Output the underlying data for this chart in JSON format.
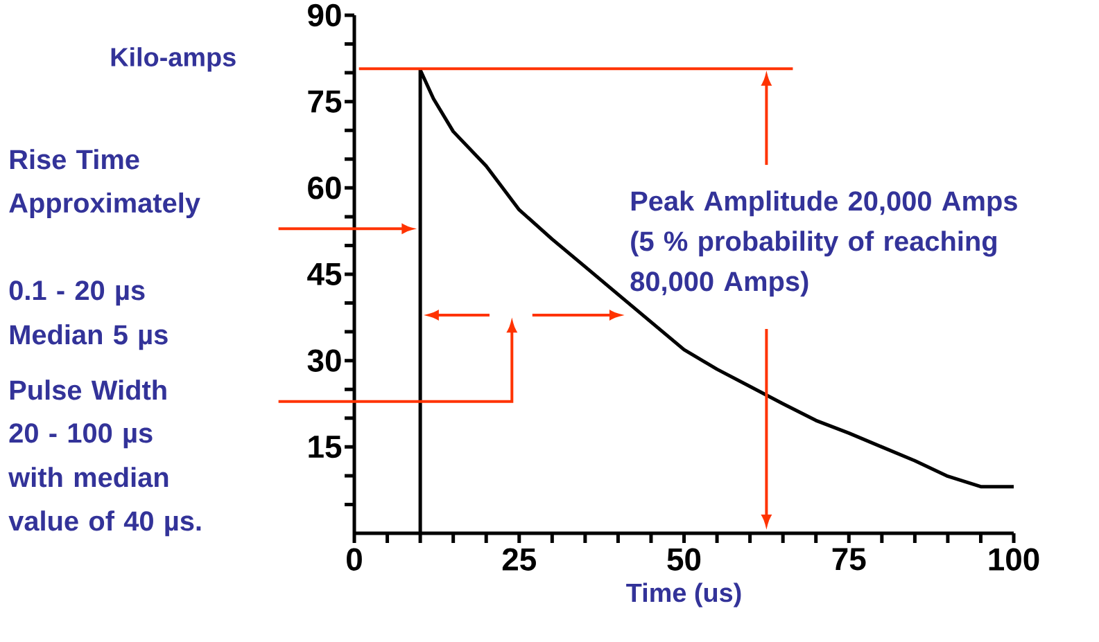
{
  "chart_data": {
    "type": "line",
    "xlabel": "Time (us)",
    "ylabel": "Kilo-amps",
    "series": [
      {
        "color": "#000000",
        "x": [
          10,
          10,
          12,
          15,
          20,
          25,
          30,
          35,
          40,
          45,
          50,
          55,
          60,
          65,
          70,
          75,
          80,
          85,
          90,
          95,
          100
        ],
        "values": [
          0,
          80.5,
          75.5,
          69.8,
          63.8,
          56.2,
          51.1,
          46.3,
          41.5,
          36.7,
          31.9,
          28.5,
          25.5,
          22.5,
          19.6,
          17.4,
          15.0,
          12.6,
          9.9,
          8.1,
          8.1
        ]
      }
    ],
    "xlim": [
      0,
      100
    ],
    "ylim": [
      0,
      90
    ],
    "xticks": [
      0,
      {
        "value": 5,
        "label": null
      },
      {
        "value": 10,
        "label": null
      },
      {
        "value": 15,
        "label": null
      },
      {
        "value": 20,
        "label": null
      },
      25,
      {
        "value": 30,
        "label": null
      },
      {
        "value": 35,
        "label": null
      },
      {
        "value": 40,
        "label": null
      },
      {
        "value": 45,
        "label": null
      },
      50,
      {
        "value": 55,
        "label": null
      },
      {
        "value": 60,
        "label": null
      },
      {
        "value": 65,
        "label": null
      },
      {
        "value": 70,
        "label": null
      },
      75,
      {
        "value": 80,
        "label": null
      },
      {
        "value": 85,
        "label": null
      },
      {
        "value": 90,
        "label": null
      },
      {
        "value": 95,
        "label": null
      },
      100
    ],
    "yticks": [
      {
        "value": 5,
        "label": null
      },
      {
        "value": 10,
        "label": null
      },
      15,
      {
        "value": 20,
        "label": null
      },
      {
        "value": 25,
        "label": null
      },
      30,
      {
        "value": 35,
        "label": null
      },
      {
        "value": 40,
        "label": null
      },
      45,
      {
        "value": 50,
        "label": null
      },
      {
        "value": 55,
        "label": null
      },
      60,
      {
        "value": 65,
        "label": null
      },
      {
        "value": 70,
        "label": null
      },
      75,
      {
        "value": 80,
        "label": null
      },
      {
        "value": 85,
        "label": null
      },
      90
    ],
    "ref_lines": [
      {
        "axis": "y",
        "value": 80.7,
        "color": "#ff3300"
      }
    ],
    "annotations": [
      "Rise Time Approximately",
      "0.1 - 20 µs",
      "Median 5 µs",
      "Pulse Width",
      "20 - 100 µs",
      "with median",
      "value of 40 µs.",
      "Peak Amplitude 20,000 Amps",
      "(5 % probability of reaching",
      "80,000 Amps)"
    ],
    "grid": false,
    "marker": "none",
    "line_style": "solid"
  }
}
